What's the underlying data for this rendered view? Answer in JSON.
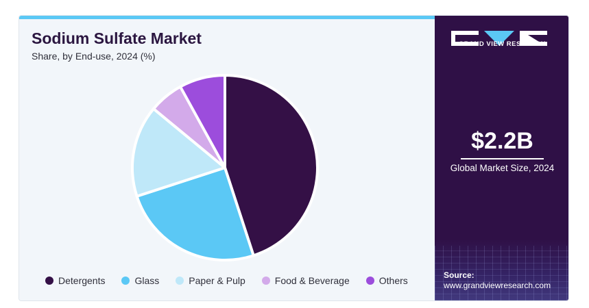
{
  "title": "Sodium Sulfate Market",
  "subtitle": "Share, by End-use, 2024 (%)",
  "chart_data": {
    "type": "pie",
    "title": "Sodium Sulfate Market",
    "subtitle": "Share, by End-use, 2024 (%)",
    "categories": [
      "Detergents",
      "Glass",
      "Paper & Pulp",
      "Food & Beverage",
      "Others"
    ],
    "values": [
      45,
      25,
      16,
      6,
      8
    ],
    "colors": [
      "#341046",
      "#5bc8f5",
      "#bfe8f9",
      "#d3aaea",
      "#9c4ddc"
    ],
    "legend_position": "bottom"
  },
  "sidebar": {
    "brand": "GRAND VIEW RESEARCH",
    "kpi_value": "$2.2B",
    "kpi_label": "Global Market Size, 2024",
    "source_title": "Source:",
    "source_url": "www.grandviewresearch.com"
  },
  "colors": {
    "sidebar_bg": "#2f1046",
    "accent": "#5bc8f5",
    "panel_bg": "#f2f6fa"
  }
}
